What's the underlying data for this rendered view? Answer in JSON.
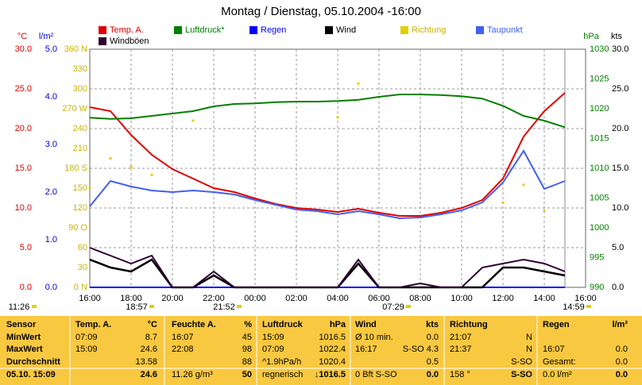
{
  "chart_data": {
    "type": "line",
    "title": "Montag / Dienstag, 05.10.2004 -16:00",
    "categories": [
      "16:00",
      null,
      "18:00",
      null,
      "20:00",
      null,
      "22:00",
      null,
      "00:00",
      null,
      "02:00",
      null,
      "04:00",
      null,
      "06:00",
      null,
      "08:00",
      null,
      "10:00",
      null,
      "12:00",
      null,
      "14:00",
      null,
      "16:00"
    ],
    "grid": true,
    "axes": {
      "temp": {
        "label": "°C",
        "color": "#e00000",
        "lim": [
          0,
          30
        ],
        "ticks": [
          {
            "value": 0,
            "label": "0.0"
          },
          {
            "value": 5,
            "label": "5.0"
          },
          {
            "value": 10,
            "label": "10.0"
          },
          {
            "value": 15,
            "label": "15.0"
          },
          {
            "value": 20,
            "label": "20.0"
          },
          {
            "value": 25,
            "label": "25.0"
          },
          {
            "value": 30,
            "label": "30.0"
          }
        ]
      },
      "rain": {
        "label": "l/m²",
        "color": "#0000e0",
        "lim": [
          0,
          5
        ],
        "ticks": [
          {
            "value": 0,
            "label": "0.0"
          },
          {
            "value": 1,
            "label": "1.0"
          },
          {
            "value": 2,
            "label": "2.0"
          },
          {
            "value": 3,
            "label": "3.0"
          },
          {
            "value": 4,
            "label": "4.0"
          },
          {
            "value": 5,
            "label": "5.0"
          }
        ]
      },
      "dir": {
        "color": "#c8b400",
        "lim": [
          0,
          360
        ],
        "ticks": [
          {
            "value": 0,
            "label": "0 N"
          },
          30,
          60,
          {
            "value": 90,
            "label": "90 O"
          },
          120,
          150,
          {
            "value": 180,
            "label": "180 S"
          },
          210,
          240,
          {
            "value": 270,
            "label": "270 W"
          },
          300,
          330,
          {
            "value": 360,
            "label": "360 N"
          }
        ]
      },
      "hpa": {
        "label": "hPa",
        "color": "#008000",
        "lim": [
          990,
          1030
        ],
        "ticks": [
          990,
          995,
          1000,
          1005,
          1010,
          1015,
          1020,
          1025,
          1030
        ]
      },
      "kts": {
        "label": "kts",
        "color": "#000000",
        "lim": [
          0,
          30
        ],
        "ticks": [
          {
            "value": 0,
            "label": "0.0"
          },
          {
            "value": 5,
            "label": "5.0"
          },
          {
            "value": 10,
            "label": "10.0"
          },
          {
            "value": 15,
            "label": "15.0"
          },
          {
            "value": 20,
            "label": "20.0"
          },
          {
            "value": 25,
            "label": "25.0"
          },
          {
            "value": 30,
            "label": "30.0"
          }
        ]
      }
    },
    "series": [
      {
        "name": "Temp. A.",
        "color": "#e00000",
        "axis": "temp",
        "values": [
          22.7,
          22.2,
          19.2,
          16.7,
          14.9,
          13.7,
          12.5,
          12.0,
          11.2,
          10.5,
          10.0,
          9.8,
          9.5,
          9.9,
          9.4,
          9.0,
          9.0,
          9.4,
          10.0,
          11.0,
          13.7,
          19.0,
          22.2,
          24.5,
          null
        ]
      },
      {
        "name": "Luftdruck*",
        "color": "#008000",
        "axis": "hpa",
        "values": [
          1018.5,
          1018.3,
          1018.4,
          1018.8,
          1019.2,
          1019.6,
          1020.4,
          1020.8,
          1020.9,
          1021.1,
          1021.2,
          1021.2,
          1021.3,
          1021.5,
          1022.0,
          1022.4,
          1022.4,
          1022.3,
          1022.1,
          1021.7,
          1020.5,
          1018.8,
          1018.0,
          1016.9,
          null
        ]
      },
      {
        "name": "Regen",
        "color": "#0000ff",
        "axis": "rain",
        "values": [
          0,
          0,
          0,
          0,
          0,
          0,
          0,
          0,
          0,
          0,
          0,
          0,
          0,
          0,
          0,
          0,
          0,
          0,
          0,
          0,
          0,
          0,
          0,
          0,
          null
        ]
      },
      {
        "name": "Wind",
        "color": "#000000",
        "axis": "kts",
        "values": [
          3.5,
          2.5,
          2.0,
          3.5,
          0,
          0,
          1.5,
          0,
          0,
          0,
          0,
          0,
          0,
          3.0,
          0,
          0,
          0,
          0,
          0,
          0,
          2.5,
          2.5,
          2.0,
          1.5,
          null
        ]
      },
      {
        "name": "Richtung",
        "color": "#e0d000",
        "axis": "dir",
        "type": "scatter",
        "values": [
          150,
          195,
          182,
          170,
          null,
          252,
          null,
          null,
          null,
          null,
          null,
          null,
          257,
          308,
          null,
          null,
          null,
          null,
          null,
          null,
          128,
          155,
          116,
          null,
          null
        ]
      },
      {
        "name": "Taupunkt",
        "color": "#4060f0",
        "axis": "temp",
        "values": [
          10.2,
          13.4,
          12.7,
          12.2,
          12.0,
          12.2,
          12.0,
          11.7,
          11.0,
          10.4,
          9.8,
          9.6,
          9.2,
          9.6,
          9.2,
          8.7,
          8.8,
          9.2,
          9.7,
          10.7,
          13.2,
          17.2,
          12.4,
          13.4,
          null
        ]
      },
      {
        "name": "Windböen",
        "color": "#300030",
        "axis": "kts",
        "values": [
          5.0,
          4.0,
          3.0,
          4.0,
          0,
          0,
          2.0,
          0,
          0,
          0,
          0,
          0,
          0,
          3.5,
          0,
          0,
          0.5,
          0,
          0,
          2.5,
          3.0,
          3.5,
          3.0,
          2.0,
          null
        ]
      }
    ],
    "annotations": [
      "11:26",
      "18:57",
      "21:52",
      "07:29",
      "14:59"
    ]
  },
  "table": {
    "sensor": {
      "header": "Sensor",
      "rows": [
        "MinWert",
        "MaxWert",
        "Durchschnitt",
        "05.10. 15:09"
      ]
    },
    "columns": [
      {
        "header": "Temp. A.",
        "unit": "°C",
        "rows": [
          [
            "07:09",
            "8.7"
          ],
          [
            "15:09",
            "24.6"
          ],
          [
            null,
            "13.58"
          ],
          [
            null,
            "24.6"
          ]
        ]
      },
      {
        "header": "Feuchte A.",
        "unit": "%",
        "rows": [
          [
            "16:07",
            "45"
          ],
          [
            "22:08",
            "98"
          ],
          [
            null,
            "88"
          ],
          [
            "11.26 g/m³",
            "50"
          ]
        ]
      },
      {
        "header": "Luftdruck",
        "unit": "hPa",
        "rows": [
          [
            "15:09",
            "1016.5"
          ],
          [
            "07:09",
            "1022.4"
          ],
          [
            "^1.9hPa/h",
            "1020.4"
          ],
          [
            "regnerisch",
            "↓1016.5"
          ]
        ]
      },
      {
        "header": "Wind",
        "unit": "kts",
        "rows": [
          [
            "Ø 10 min.",
            "0.0"
          ],
          [
            "16:17",
            "S-SO 4.3"
          ],
          [
            null,
            "0.5"
          ],
          [
            "0 Bft S-SO",
            "0.0"
          ]
        ]
      },
      {
        "header": "Richtung",
        "rows": [
          [
            "21:07",
            "N"
          ],
          [
            "21:37",
            "N"
          ],
          [
            null,
            "S-SO"
          ],
          [
            "158 °",
            "S-SO"
          ]
        ]
      },
      {
        "header": "Regen",
        "unit": "l/m²",
        "rows": [
          [
            null,
            null
          ],
          [
            "16:07",
            "0.0"
          ],
          [
            "Gesamt:",
            "0.0"
          ],
          [
            "0.0 l/m²",
            "0.0"
          ]
        ]
      }
    ]
  }
}
